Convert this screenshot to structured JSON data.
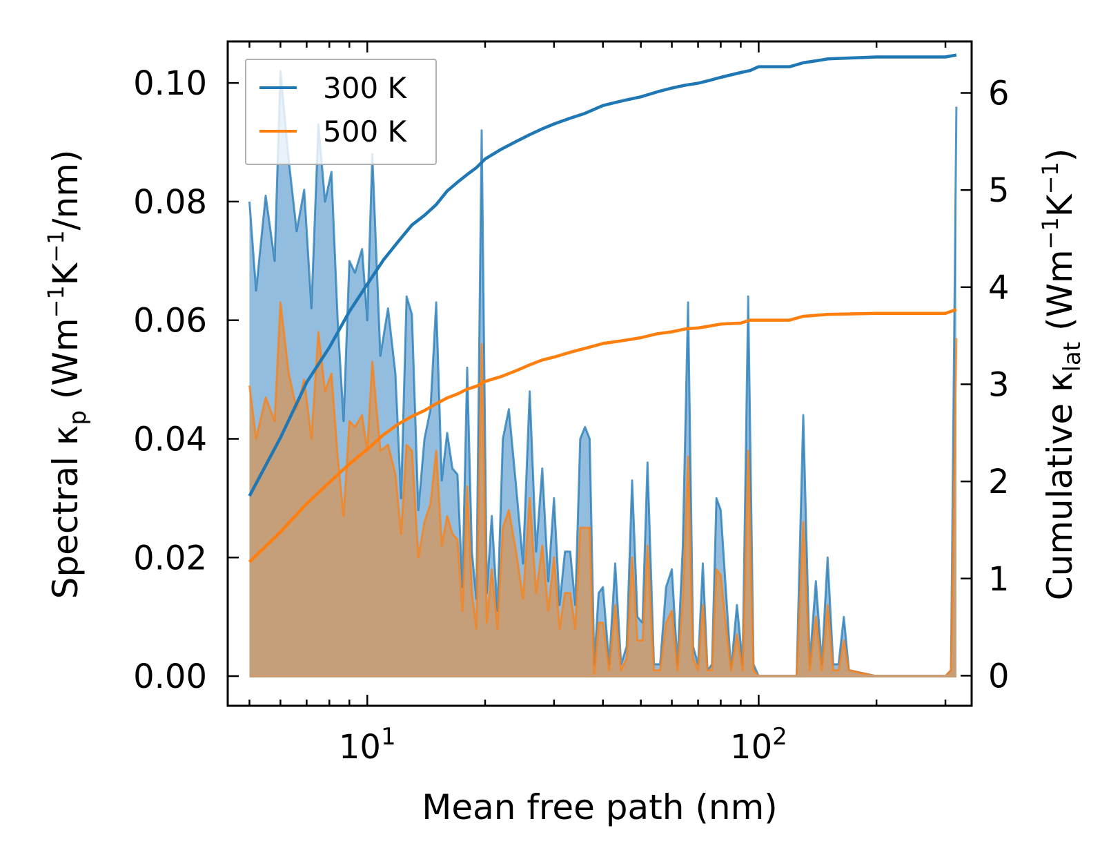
{
  "chart_data": {
    "type": "area+line",
    "xscale": "log",
    "xlabel": "Mean free path (nm)",
    "xlim": [
      4.4,
      350
    ],
    "x_major_ticks": [
      {
        "value": 10,
        "base": "10",
        "exp": "1"
      },
      {
        "value": 100,
        "base": "10",
        "exp": "2"
      }
    ],
    "left_axis": {
      "label_prefix": "Spectral κ",
      "label_sub": "p",
      "label_unit_open": " (Wm",
      "label_sup1": "−1",
      "label_mid": "K",
      "label_sup2": "−1",
      "label_close": "/nm)",
      "ylim": [
        -0.005,
        0.107
      ],
      "ticks": [
        0.0,
        0.02,
        0.04,
        0.06,
        0.08,
        0.1
      ],
      "tick_labels": [
        "0.00",
        "0.02",
        "0.04",
        "0.06",
        "0.08",
        "0.10"
      ]
    },
    "right_axis": {
      "label_prefix": "Cumulative κ",
      "label_sub": "lat",
      "label_unit_open": " (Wm",
      "label_sup1": "−1",
      "label_mid": "K",
      "label_sup2": "−1",
      "label_close": ")",
      "ylim": [
        -0.31,
        6.53
      ],
      "ticks": [
        0,
        1,
        2,
        3,
        4,
        5,
        6
      ],
      "tick_labels": [
        "0",
        "1",
        "2",
        "3",
        "4",
        "5",
        "6"
      ]
    },
    "legend": {
      "position": "top-left",
      "entries": [
        "300 K",
        "500 K"
      ]
    },
    "series": [
      {
        "name": "300 K",
        "color": "#1f77b4",
        "fill_color": "#7fb1d8",
        "spectral": {
          "x": [
            5.0,
            5.2,
            5.5,
            5.8,
            6.0,
            6.3,
            6.6,
            6.9,
            7.2,
            7.5,
            7.8,
            8.1,
            8.4,
            8.7,
            9.0,
            9.3,
            9.7,
            10.0,
            10.3,
            10.8,
            11.3,
            11.8,
            12.2,
            12.6,
            13.0,
            13.5,
            14.0,
            14.5,
            15.0,
            15.5,
            16.0,
            16.5,
            17.0,
            17.5,
            18.0,
            18.5,
            19.0,
            19.6,
            20.2,
            20.8,
            21.5,
            22.2,
            23.0,
            24.0,
            25.0,
            26.0,
            27.0,
            28.0,
            29.0,
            30.0,
            31.0,
            32.0,
            33.0,
            34.0,
            35.0,
            36.0,
            37.0,
            38.0,
            39.0,
            40.0,
            41.5,
            43.0,
            44.5,
            46.0,
            47.5,
            49.0,
            50.5,
            52.0,
            54.0,
            56.0,
            58.0,
            60.0,
            62.0,
            64.0,
            66.0,
            68.0,
            70.0,
            72.0,
            74.0,
            76.0,
            78.0,
            80.0,
            82.0,
            85.0,
            88.0,
            91.0,
            94.0,
            97.0,
            100.0,
            105.0,
            110.0,
            115.0,
            120.0,
            125.0,
            130.0,
            135.0,
            140.0,
            145.0,
            150.0,
            155.0,
            160.0,
            165.0,
            170.0,
            200.0,
            250.0,
            300.0,
            310.0,
            320.0
          ],
          "y": [
            0.08,
            0.065,
            0.081,
            0.07,
            0.102,
            0.087,
            0.075,
            0.082,
            0.062,
            0.093,
            0.08,
            0.085,
            0.06,
            0.043,
            0.07,
            0.068,
            0.072,
            0.06,
            0.088,
            0.054,
            0.062,
            0.051,
            0.03,
            0.064,
            0.061,
            0.028,
            0.04,
            0.045,
            0.063,
            0.033,
            0.041,
            0.035,
            0.034,
            0.015,
            0.052,
            0.021,
            0.013,
            0.092,
            0.014,
            0.027,
            0.011,
            0.04,
            0.045,
            0.032,
            0.019,
            0.048,
            0.021,
            0.035,
            0.016,
            0.03,
            0.012,
            0.021,
            0.021,
            0.012,
            0.04,
            0.042,
            0.04,
            0.002,
            0.014,
            0.015,
            0.002,
            0.019,
            0.002,
            0.005,
            0.033,
            0.01,
            0.009,
            0.036,
            0.002,
            0.002,
            0.015,
            0.018,
            0.002,
            0.022,
            0.063,
            0.005,
            0.002,
            0.019,
            0.001,
            0.002,
            0.03,
            0.028,
            0.017,
            0.001,
            0.012,
            0.002,
            0.064,
            0.002,
            0.0,
            0.0,
            0.0,
            0.0,
            0.0,
            0.0,
            0.044,
            0.002,
            0.016,
            0.002,
            0.02,
            0.002,
            0.002,
            0.01,
            0.001,
            0.0,
            0.0,
            0.0,
            0.001,
            0.096
          ]
        },
        "cumulative": {
          "x": [
            5.0,
            6.0,
            7.0,
            8.0,
            9.0,
            10.0,
            11.0,
            12.0,
            13.0,
            14.0,
            15.0,
            16.0,
            17.0,
            18.0,
            19.0,
            20.0,
            22.0,
            24.0,
            26.0,
            28.0,
            30.0,
            33.0,
            36.0,
            40.0,
            45.0,
            50.0,
            55.0,
            60.0,
            65.0,
            70.0,
            75.0,
            80.0,
            90.0,
            95.0,
            100.0,
            120.0,
            130.0,
            140.0,
            150.0,
            200.0,
            250.0,
            300.0,
            320.0
          ],
          "y": [
            1.85,
            2.45,
            3.02,
            3.38,
            3.75,
            4.03,
            4.28,
            4.47,
            4.64,
            4.74,
            4.85,
            4.99,
            5.08,
            5.16,
            5.23,
            5.32,
            5.42,
            5.5,
            5.57,
            5.63,
            5.68,
            5.74,
            5.79,
            5.87,
            5.92,
            5.96,
            6.01,
            6.05,
            6.08,
            6.1,
            6.13,
            6.16,
            6.21,
            6.23,
            6.27,
            6.27,
            6.31,
            6.33,
            6.35,
            6.37,
            6.37,
            6.37,
            6.39
          ]
        }
      },
      {
        "name": "500 K",
        "color": "#ff7f0e",
        "fill_color": "#c89c74",
        "spectral": {
          "x": [
            5.0,
            5.2,
            5.5,
            5.8,
            6.0,
            6.3,
            6.6,
            6.9,
            7.2,
            7.5,
            7.8,
            8.1,
            8.4,
            8.7,
            9.0,
            9.3,
            9.7,
            10.0,
            10.3,
            10.8,
            11.3,
            11.8,
            12.2,
            12.6,
            13.0,
            13.5,
            14.0,
            14.5,
            15.0,
            15.5,
            16.0,
            16.5,
            17.0,
            17.5,
            18.0,
            18.5,
            19.0,
            19.6,
            20.2,
            20.8,
            21.5,
            22.2,
            23.0,
            24.0,
            25.0,
            26.0,
            27.0,
            28.0,
            29.0,
            30.0,
            31.0,
            32.0,
            33.0,
            34.0,
            35.0,
            36.0,
            37.0,
            38.0,
            39.0,
            40.0,
            41.5,
            43.0,
            44.5,
            46.0,
            47.5,
            49.0,
            50.5,
            52.0,
            54.0,
            56.0,
            58.0,
            60.0,
            62.0,
            64.0,
            66.0,
            68.0,
            70.0,
            72.0,
            74.0,
            76.0,
            78.0,
            80.0,
            82.0,
            85.0,
            88.0,
            91.0,
            94.0,
            97.0,
            100.0,
            105.0,
            110.0,
            115.0,
            120.0,
            125.0,
            130.0,
            135.0,
            140.0,
            145.0,
            150.0,
            155.0,
            160.0,
            165.0,
            170.0,
            200.0,
            250.0,
            300.0,
            310.0,
            320.0
          ],
          "y": [
            0.049,
            0.04,
            0.047,
            0.043,
            0.063,
            0.051,
            0.045,
            0.05,
            0.04,
            0.058,
            0.048,
            0.051,
            0.037,
            0.027,
            0.043,
            0.042,
            0.044,
            0.038,
            0.053,
            0.038,
            0.039,
            0.034,
            0.024,
            0.039,
            0.038,
            0.02,
            0.026,
            0.029,
            0.038,
            0.022,
            0.027,
            0.024,
            0.023,
            0.011,
            0.032,
            0.014,
            0.008,
            0.056,
            0.009,
            0.018,
            0.008,
            0.025,
            0.028,
            0.021,
            0.013,
            0.03,
            0.014,
            0.022,
            0.011,
            0.02,
            0.008,
            0.014,
            0.014,
            0.008,
            0.025,
            0.025,
            0.025,
            0.0,
            0.009,
            0.009,
            0.001,
            0.012,
            0.001,
            0.003,
            0.02,
            0.006,
            0.006,
            0.022,
            0.001,
            0.001,
            0.009,
            0.011,
            0.001,
            0.013,
            0.037,
            0.003,
            0.001,
            0.012,
            0.001,
            0.001,
            0.018,
            0.017,
            0.01,
            0.001,
            0.007,
            0.001,
            0.038,
            0.001,
            0.0,
            0.0,
            0.0,
            0.0,
            0.0,
            0.0,
            0.026,
            0.001,
            0.01,
            0.001,
            0.012,
            0.001,
            0.001,
            0.006,
            0.001,
            0.0,
            0.0,
            0.0,
            0.001,
            0.057
          ]
        },
        "cumulative": {
          "x": [
            5.0,
            6.0,
            7.0,
            8.0,
            9.0,
            10.0,
            11.0,
            12.0,
            13.0,
            14.0,
            15.0,
            16.0,
            17.0,
            18.0,
            19.0,
            20.0,
            22.0,
            24.0,
            26.0,
            28.0,
            30.0,
            33.0,
            36.0,
            40.0,
            45.0,
            50.0,
            55.0,
            60.0,
            65.0,
            70.0,
            75.0,
            80.0,
            90.0,
            95.0,
            100.0,
            120.0,
            130.0,
            140.0,
            150.0,
            200.0,
            250.0,
            300.0,
            320.0
          ],
          "y": [
            1.17,
            1.48,
            1.77,
            1.99,
            2.18,
            2.33,
            2.48,
            2.59,
            2.67,
            2.73,
            2.8,
            2.86,
            2.9,
            2.95,
            2.98,
            3.03,
            3.08,
            3.14,
            3.2,
            3.25,
            3.28,
            3.33,
            3.37,
            3.42,
            3.45,
            3.48,
            3.52,
            3.54,
            3.57,
            3.58,
            3.6,
            3.62,
            3.63,
            3.66,
            3.66,
            3.66,
            3.7,
            3.71,
            3.72,
            3.73,
            3.73,
            3.73,
            3.77
          ]
        }
      }
    ]
  }
}
